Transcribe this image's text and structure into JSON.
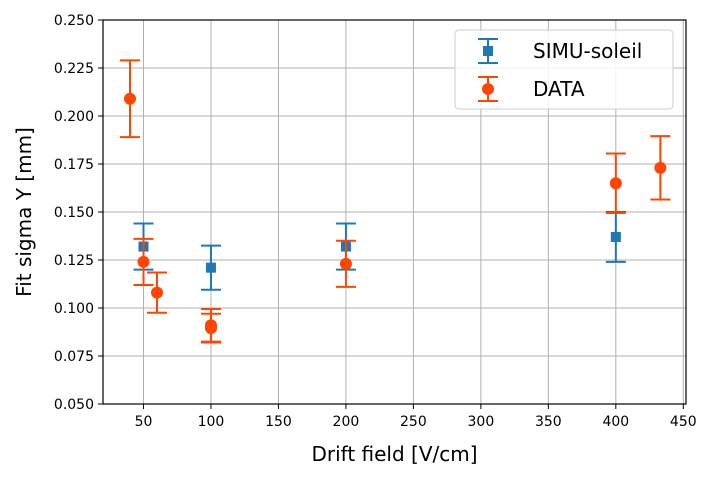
{
  "chart_data": {
    "type": "scatter",
    "title": "",
    "xlabel": "Drift field [V/cm]",
    "ylabel": "Fit sigma Y [mm]",
    "xlim": [
      20,
      452
    ],
    "ylim": [
      0.05,
      0.25
    ],
    "xticks": [
      50,
      100,
      150,
      200,
      250,
      300,
      350,
      400,
      450
    ],
    "yticks": [
      0.05,
      0.075,
      0.1,
      0.125,
      0.15,
      0.175,
      0.2,
      0.225,
      0.25
    ],
    "xtick_labels": [
      "50",
      "100",
      "150",
      "200",
      "250",
      "300",
      "350",
      "400",
      "450"
    ],
    "ytick_labels": [
      "0.050",
      "0.075",
      "0.100",
      "0.125",
      "0.150",
      "0.175",
      "0.200",
      "0.225",
      "0.250"
    ],
    "grid": true,
    "legend_position": "top-right",
    "series": [
      {
        "name": "SIMU-soleil",
        "marker": "square",
        "color": "#1f77b4",
        "points": [
          {
            "x": 50,
            "y": 0.132,
            "err": 0.012
          },
          {
            "x": 100,
            "y": 0.121,
            "err": 0.0115
          },
          {
            "x": 200,
            "y": 0.132,
            "err": 0.012
          },
          {
            "x": 400,
            "y": 0.137,
            "err": 0.013
          }
        ]
      },
      {
        "name": "DATA",
        "marker": "circle",
        "color": "#ff4500",
        "points": [
          {
            "x": 40,
            "y": 0.209,
            "err": 0.02
          },
          {
            "x": 50,
            "y": 0.124,
            "err": 0.012
          },
          {
            "x": 60,
            "y": 0.108,
            "err": 0.0105
          },
          {
            "x": 100,
            "y": 0.091,
            "err": 0.0085
          },
          {
            "x": 100,
            "y": 0.0895,
            "err": 0.0075
          },
          {
            "x": 200,
            "y": 0.123,
            "err": 0.012
          },
          {
            "x": 400,
            "y": 0.165,
            "err": 0.0155
          },
          {
            "x": 433,
            "y": 0.173,
            "err": 0.0165
          }
        ]
      }
    ]
  }
}
